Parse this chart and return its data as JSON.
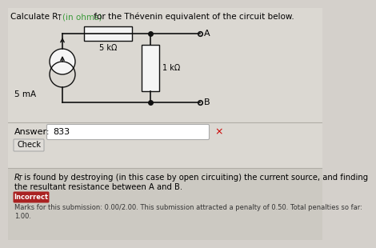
{
  "bg_color": "#d4d0cb",
  "circuit_area_bg": "#dbd8d2",
  "bottom_panel_bg": "#ccc9c2",
  "answer_area_bg": "#dbd8d2",
  "title_prefix": "Calculate R",
  "title_sub": "T",
  "title_green": "(in ohms)",
  "title_suffix": " for the Thévenin equivalent of the circuit below.",
  "answer_label": "Answer:",
  "answer_value": "833",
  "x_mark": "×",
  "x_mark_color": "#cc0000",
  "check_button_text": "Check",
  "feedback_text1": "R",
  "feedback_text1b": "T",
  "feedback_text1c": " is found by destroying (in this case by open circuiting) the current source, and finding",
  "feedback_text2": "the resultant resistance between A and B.",
  "incorrect_label": "Incorrect",
  "incorrect_bg": "#aa2222",
  "marks_text": "Marks for this submission: 0.00/2.00. This submission attracted a penalty of 0.50. Total penalties so far:",
  "marks_text2": "1.00.",
  "source_label": "5 mA",
  "r1_label": "5 kΩ",
  "r2_label": "1 kΩ",
  "node_a_label": "A",
  "node_b_label": "B",
  "wire_color": "#111111",
  "component_fill": "#f5f5f5",
  "green_color": "#3a9a3a",
  "node_dot_color": "#111111",
  "open_node_color": "#111111"
}
